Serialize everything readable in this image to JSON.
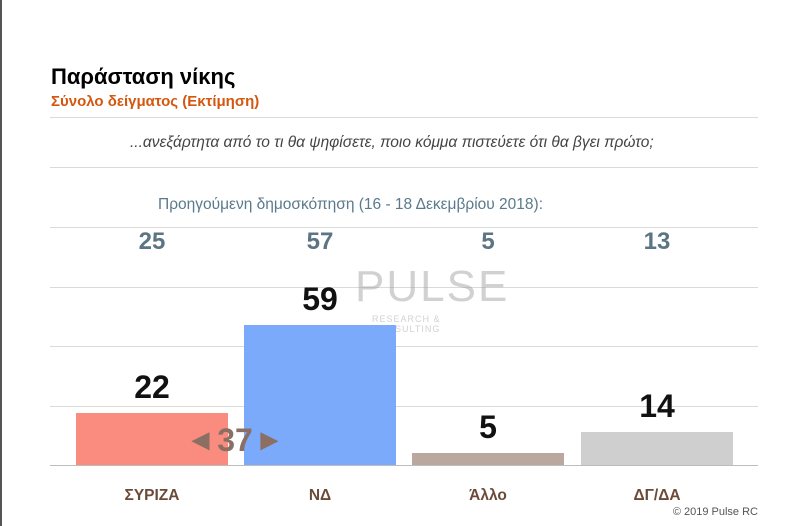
{
  "header": {
    "title": "Παράσταση νίκης",
    "subtitle": "Σύνολο δείγματος   (Εκτίμηση)",
    "question": "...ανεξάρτητα από το τι θα ψηφίσετε, ποιο κόμμα πιστεύετε ότι θα βγει πρώτο;"
  },
  "previous": {
    "label": "Προηγούμενη δημοσκόπηση (16 - 18 Δεκεμβρίου 2018):",
    "values": [
      "25",
      "57",
      "5",
      "13"
    ]
  },
  "lead": {
    "value": "37",
    "left_arrow": "◀",
    "right_arrow": "▶"
  },
  "logo": {
    "word": "PULSE",
    "tagline": "RESEARCH & CONSULTING"
  },
  "footer": {
    "copyright": "© 2019 Pulse RC"
  },
  "chart_data": {
    "type": "bar",
    "categories": [
      "ΣΥΡΙΖΑ",
      "ΝΔ",
      "Άλλο",
      "ΔΓ/ΔΑ"
    ],
    "values": [
      22,
      59,
      5,
      14
    ],
    "previous_values": [
      25,
      57,
      5,
      13
    ],
    "colors": [
      "#f98b7f",
      "#7aaaf9",
      "#baa89e",
      "#cfcfcf"
    ],
    "ylim": [
      0,
      80
    ],
    "grid": true
  }
}
